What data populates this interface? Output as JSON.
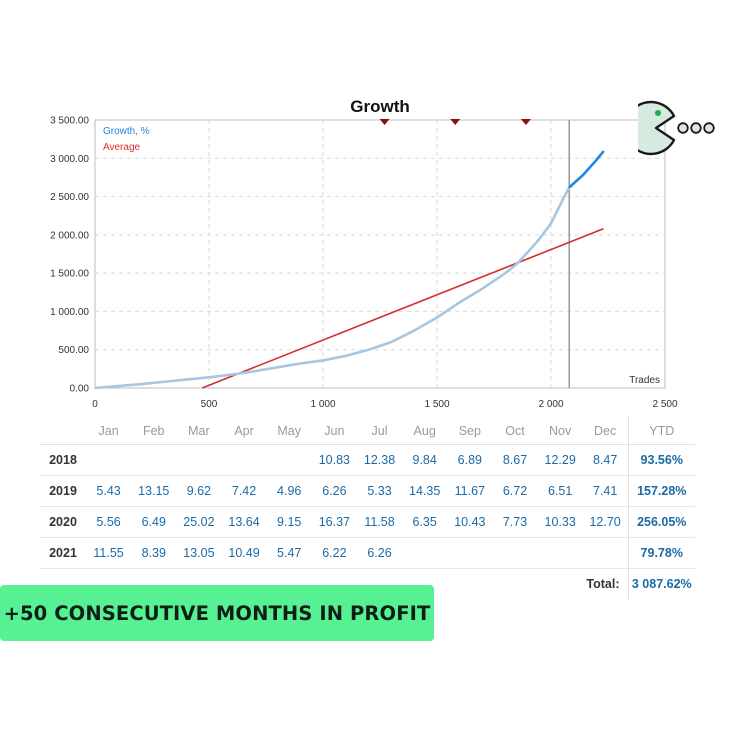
{
  "chart_data": {
    "type": "line",
    "title": "Growth",
    "x_axis_label": "Trades",
    "xlim": [
      0,
      2500
    ],
    "ylim": [
      0,
      3500
    ],
    "x_ticks": [
      "0",
      "500",
      "1 000",
      "1 500",
      "2 000",
      "2 500"
    ],
    "y_ticks": [
      "0.00",
      "500.00",
      "1 000.00",
      "1 500.00",
      "2 000.00",
      "2 500.00",
      "3 000.00",
      "3 500.00"
    ],
    "x_tick_values": [
      0,
      500,
      1000,
      1500,
      2000,
      2500
    ],
    "y_tick_values": [
      0,
      500,
      1000,
      1500,
      2000,
      2500,
      3000,
      3500
    ],
    "grid": true,
    "legend_position": "top-left",
    "vertical_marker_x": 2080,
    "top_markers_x": [
      1270,
      1580,
      1890
    ],
    "series": [
      {
        "name": "Growth, %",
        "color": "#1e88e5",
        "history_color": "#a7c6e0",
        "x": [
          0,
          100,
          200,
          300,
          400,
          500,
          600,
          700,
          800,
          900,
          1000,
          1100,
          1200,
          1300,
          1400,
          1500,
          1600,
          1700,
          1800,
          1850,
          1900,
          1950,
          2000,
          2050,
          2080,
          2110,
          2140,
          2170,
          2200,
          2230
        ],
        "y": [
          0,
          25,
          50,
          80,
          110,
          140,
          175,
          220,
          270,
          320,
          360,
          420,
          500,
          600,
          750,
          920,
          1120,
          1300,
          1500,
          1620,
          1780,
          1950,
          2150,
          2450,
          2620,
          2700,
          2780,
          2880,
          2980,
          3090
        ]
      },
      {
        "name": "Average",
        "color": "#d32f2f",
        "x": [
          470,
          2230
        ],
        "y": [
          0,
          2080
        ]
      }
    ]
  },
  "table": {
    "columns": [
      "",
      "Jan",
      "Feb",
      "Mar",
      "Apr",
      "May",
      "Jun",
      "Jul",
      "Aug",
      "Sep",
      "Oct",
      "Nov",
      "Dec",
      "YTD"
    ],
    "rows": [
      {
        "year": "2018",
        "values": [
          "",
          "",
          "",
          "",
          "",
          "10.83",
          "12.38",
          "9.84",
          "6.89",
          "8.67",
          "12.29",
          "8.47"
        ],
        "ytd": "93.56%"
      },
      {
        "year": "2019",
        "values": [
          "5.43",
          "13.15",
          "9.62",
          "7.42",
          "4.96",
          "6.26",
          "5.33",
          "14.35",
          "11.67",
          "6.72",
          "6.51",
          "7.41"
        ],
        "ytd": "157.28%"
      },
      {
        "year": "2020",
        "values": [
          "5.56",
          "6.49",
          "25.02",
          "13.64",
          "9.15",
          "16.37",
          "11.58",
          "6.35",
          "10.43",
          "7.73",
          "10.33",
          "12.70"
        ],
        "ytd": "256.05%"
      },
      {
        "year": "2021",
        "values": [
          "11.55",
          "8.39",
          "13.05",
          "10.49",
          "5.47",
          "6.22",
          "6.26",
          "",
          "",
          "",
          "",
          ""
        ],
        "ytd": "79.78%"
      }
    ],
    "total_label": "Total:",
    "total_value": "3 087.62%"
  },
  "banner": {
    "text": "+50 CONSECUTIVE MONTHS IN PROFIT",
    "color": "#57f193"
  },
  "mascot": {
    "icon": "pacman-logo-icon",
    "color": "#d6eadf"
  }
}
